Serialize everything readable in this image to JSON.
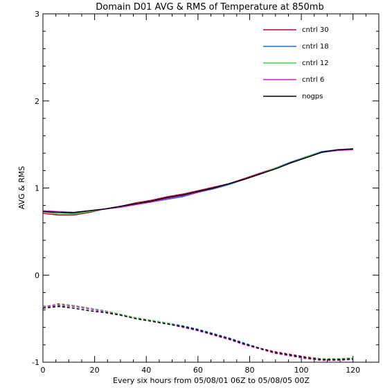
{
  "chart_data": {
    "type": "line",
    "title": "Domain D01 AVG & RMS of Temperature at 850mb",
    "xlabel": "Every six hours from 05/08/01 06Z to 05/08/05 00Z",
    "ylabel": "AVG & RMS",
    "xlim": [
      0,
      130
    ],
    "ylim": [
      -1,
      3
    ],
    "xticks": [
      0,
      20,
      40,
      60,
      80,
      100,
      120
    ],
    "yticks": [
      -1,
      0,
      1,
      2,
      3
    ],
    "legend_position": "top-right",
    "x": [
      0,
      6,
      12,
      18,
      24,
      30,
      36,
      42,
      48,
      54,
      60,
      66,
      72,
      78,
      84,
      90,
      96,
      102,
      108,
      114,
      120
    ],
    "series": [
      {
        "name": "cntrl 30",
        "color": "#c8003c",
        "rms": [
          0.71,
          0.69,
          0.69,
          0.72,
          0.76,
          0.79,
          0.83,
          0.86,
          0.9,
          0.93,
          0.97,
          1.01,
          1.05,
          1.11,
          1.17,
          1.23,
          1.29,
          1.36,
          1.41,
          1.44,
          1.45
        ],
        "avg": [
          -0.37,
          -0.33,
          -0.35,
          -0.38,
          -0.41,
          -0.45,
          -0.49,
          -0.52,
          -0.55,
          -0.59,
          -0.63,
          -0.68,
          -0.73,
          -0.79,
          -0.84,
          -0.88,
          -0.91,
          -0.94,
          -0.96,
          -0.96,
          -0.95
        ]
      },
      {
        "name": "cntrl 18",
        "color": "#1f6fd6",
        "rms": [
          0.74,
          0.72,
          0.71,
          0.73,
          0.76,
          0.78,
          0.81,
          0.84,
          0.87,
          0.9,
          0.95,
          0.99,
          1.04,
          1.1,
          1.16,
          1.23,
          1.3,
          1.36,
          1.42,
          1.44,
          1.45
        ],
        "avg": [
          -0.36,
          -0.34,
          -0.35,
          -0.38,
          -0.41,
          -0.45,
          -0.49,
          -0.52,
          -0.55,
          -0.58,
          -0.62,
          -0.67,
          -0.72,
          -0.78,
          -0.84,
          -0.89,
          -0.92,
          -0.95,
          -0.97,
          -0.97,
          -0.96
        ]
      },
      {
        "name": "cntrl 12",
        "color": "#3ad63a",
        "rms": [
          0.73,
          0.7,
          0.7,
          0.73,
          0.76,
          0.79,
          0.82,
          0.85,
          0.89,
          0.92,
          0.96,
          1.0,
          1.05,
          1.1,
          1.16,
          1.23,
          1.29,
          1.36,
          1.41,
          1.44,
          1.45
        ],
        "avg": [
          -0.37,
          -0.34,
          -0.35,
          -0.38,
          -0.41,
          -0.45,
          -0.49,
          -0.52,
          -0.55,
          -0.59,
          -0.63,
          -0.68,
          -0.73,
          -0.79,
          -0.84,
          -0.89,
          -0.92,
          -0.95,
          -0.96,
          -0.96,
          -0.95
        ]
      },
      {
        "name": "cntrl 6",
        "color": "#d21ed2",
        "rms": [
          0.74,
          0.73,
          0.72,
          0.74,
          0.76,
          0.78,
          0.81,
          0.84,
          0.88,
          0.91,
          0.95,
          1.0,
          1.05,
          1.1,
          1.16,
          1.22,
          1.29,
          1.35,
          1.41,
          1.43,
          1.44
        ],
        "avg": [
          -0.36,
          -0.35,
          -0.36,
          -0.39,
          -0.42,
          -0.46,
          -0.5,
          -0.53,
          -0.56,
          -0.6,
          -0.64,
          -0.69,
          -0.74,
          -0.8,
          -0.85,
          -0.9,
          -0.93,
          -0.96,
          -0.98,
          -0.98,
          -0.97
        ]
      },
      {
        "name": "nogps",
        "color": "#000000",
        "rms": [
          0.73,
          0.72,
          0.72,
          0.74,
          0.76,
          0.79,
          0.82,
          0.85,
          0.89,
          0.92,
          0.96,
          1.0,
          1.05,
          1.1,
          1.16,
          1.22,
          1.29,
          1.35,
          1.41,
          1.44,
          1.45
        ],
        "avg": [
          -0.38,
          -0.36,
          -0.38,
          -0.41,
          -0.43,
          -0.46,
          -0.5,
          -0.53,
          -0.56,
          -0.59,
          -0.63,
          -0.68,
          -0.73,
          -0.79,
          -0.84,
          -0.89,
          -0.92,
          -0.95,
          -0.97,
          -0.97,
          -0.96
        ]
      }
    ]
  }
}
